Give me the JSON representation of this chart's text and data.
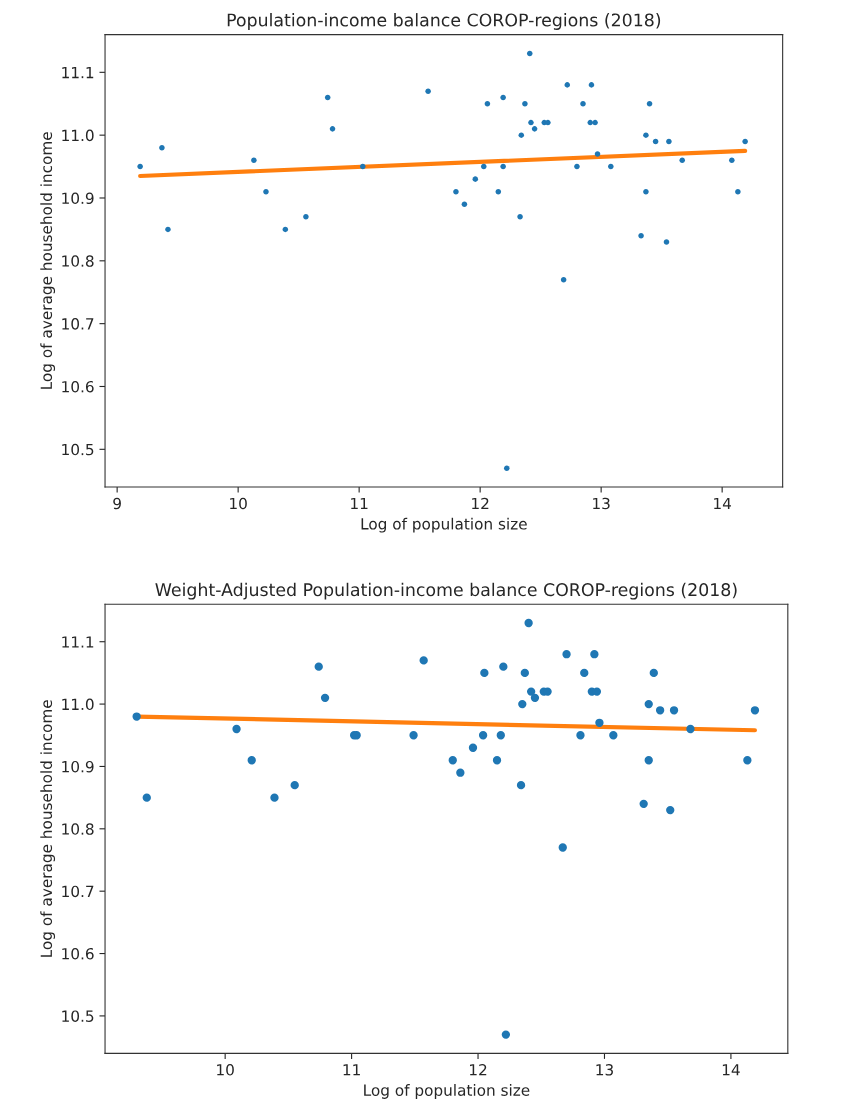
{
  "chart_data": [
    {
      "type": "scatter",
      "title": "Population-income balance COROP-regions (2018)",
      "xlabel": "Log of population size",
      "ylabel": "Log of average household income",
      "xlim": [
        8.9,
        14.5
      ],
      "ylim": [
        10.44,
        11.16
      ],
      "xticks": [
        9,
        10,
        11,
        12,
        13,
        14
      ],
      "yticks": [
        10.5,
        10.6,
        10.7,
        10.8,
        10.9,
        {
          "value": 11,
          "label": "11.0"
        },
        11.1
      ],
      "grid": false,
      "series": [
        {
          "marker": "circle",
          "color": "#1f77b4",
          "x": [
            9.19,
            9.37,
            9.42,
            10.13,
            10.23,
            10.39,
            10.56,
            10.74,
            10.78,
            11.03,
            11.57,
            11.8,
            11.87,
            11.96,
            12.03,
            12.06,
            12.15,
            12.19,
            12.19,
            12.22,
            12.33,
            12.34,
            12.37,
            12.41,
            12.42,
            12.45,
            12.53,
            12.56,
            12.69,
            12.72,
            12.8,
            12.85,
            12.91,
            12.92,
            12.95,
            12.97,
            13.08,
            13.33,
            13.37,
            13.37,
            13.4,
            13.45,
            13.54,
            13.56,
            13.67,
            14.08,
            14.13,
            14.19
          ],
          "values": [
            10.95,
            10.98,
            10.85,
            10.96,
            10.91,
            10.85,
            10.87,
            11.06,
            11.01,
            10.95,
            11.07,
            10.91,
            10.89,
            10.93,
            10.95,
            11.05,
            10.91,
            10.95,
            11.06,
            10.47,
            10.87,
            11.0,
            11.05,
            11.13,
            11.02,
            11.01,
            11.02,
            11.02,
            10.77,
            11.08,
            10.95,
            11.05,
            11.02,
            11.08,
            11.02,
            10.97,
            10.95,
            10.84,
            11.0,
            10.91,
            11.05,
            10.99,
            10.83,
            10.99,
            10.96,
            10.96,
            10.91,
            10.99
          ]
        },
        {
          "type": "line",
          "color": "#ff7f0e",
          "x": [
            9.19,
            14.19
          ],
          "values": [
            10.935,
            10.975
          ]
        }
      ]
    },
    {
      "type": "scatter",
      "title": "Weight-Adjusted Population-income balance COROP-regions (2018)",
      "xlabel": "Log of population size",
      "ylabel": "Log of average household income",
      "xlim": [
        9.05,
        14.45
      ],
      "ylim": [
        10.44,
        11.16
      ],
      "xticks": [
        10,
        11,
        12,
        13,
        14
      ],
      "yticks": [
        10.5,
        10.6,
        10.7,
        10.8,
        10.9,
        {
          "value": 11,
          "label": "11.0"
        },
        11.1
      ],
      "grid": false,
      "series": [
        {
          "marker": "circle",
          "color": "#1f77b4",
          "x": [
            9.3,
            9.38,
            10.09,
            10.21,
            10.39,
            10.55,
            10.74,
            10.79,
            11.02,
            11.04,
            11.49,
            11.57,
            11.8,
            11.86,
            11.96,
            12.04,
            12.05,
            12.15,
            12.18,
            12.2,
            12.22,
            12.34,
            12.35,
            12.37,
            12.4,
            12.42,
            12.45,
            12.52,
            12.55,
            12.67,
            12.7,
            12.81,
            12.84,
            12.9,
            12.92,
            12.94,
            12.96,
            13.07,
            13.31,
            13.35,
            13.35,
            13.39,
            13.44,
            13.52,
            13.55,
            13.68,
            14.13,
            14.19
          ],
          "values": [
            10.98,
            10.85,
            10.96,
            10.91,
            10.85,
            10.87,
            11.06,
            11.01,
            10.95,
            10.95,
            10.95,
            11.07,
            10.91,
            10.89,
            10.93,
            10.95,
            11.05,
            10.91,
            10.95,
            11.06,
            10.47,
            10.87,
            11.0,
            11.05,
            11.13,
            11.02,
            11.01,
            11.02,
            11.02,
            10.77,
            11.08,
            10.95,
            11.05,
            11.02,
            11.08,
            11.02,
            10.97,
            10.95,
            10.84,
            11.0,
            10.91,
            11.05,
            10.99,
            10.83,
            10.99,
            10.96,
            10.91,
            10.99
          ]
        },
        {
          "type": "line",
          "color": "#ff7f0e",
          "x": [
            9.3,
            14.19
          ],
          "values": [
            10.98,
            10.958
          ]
        }
      ]
    }
  ]
}
